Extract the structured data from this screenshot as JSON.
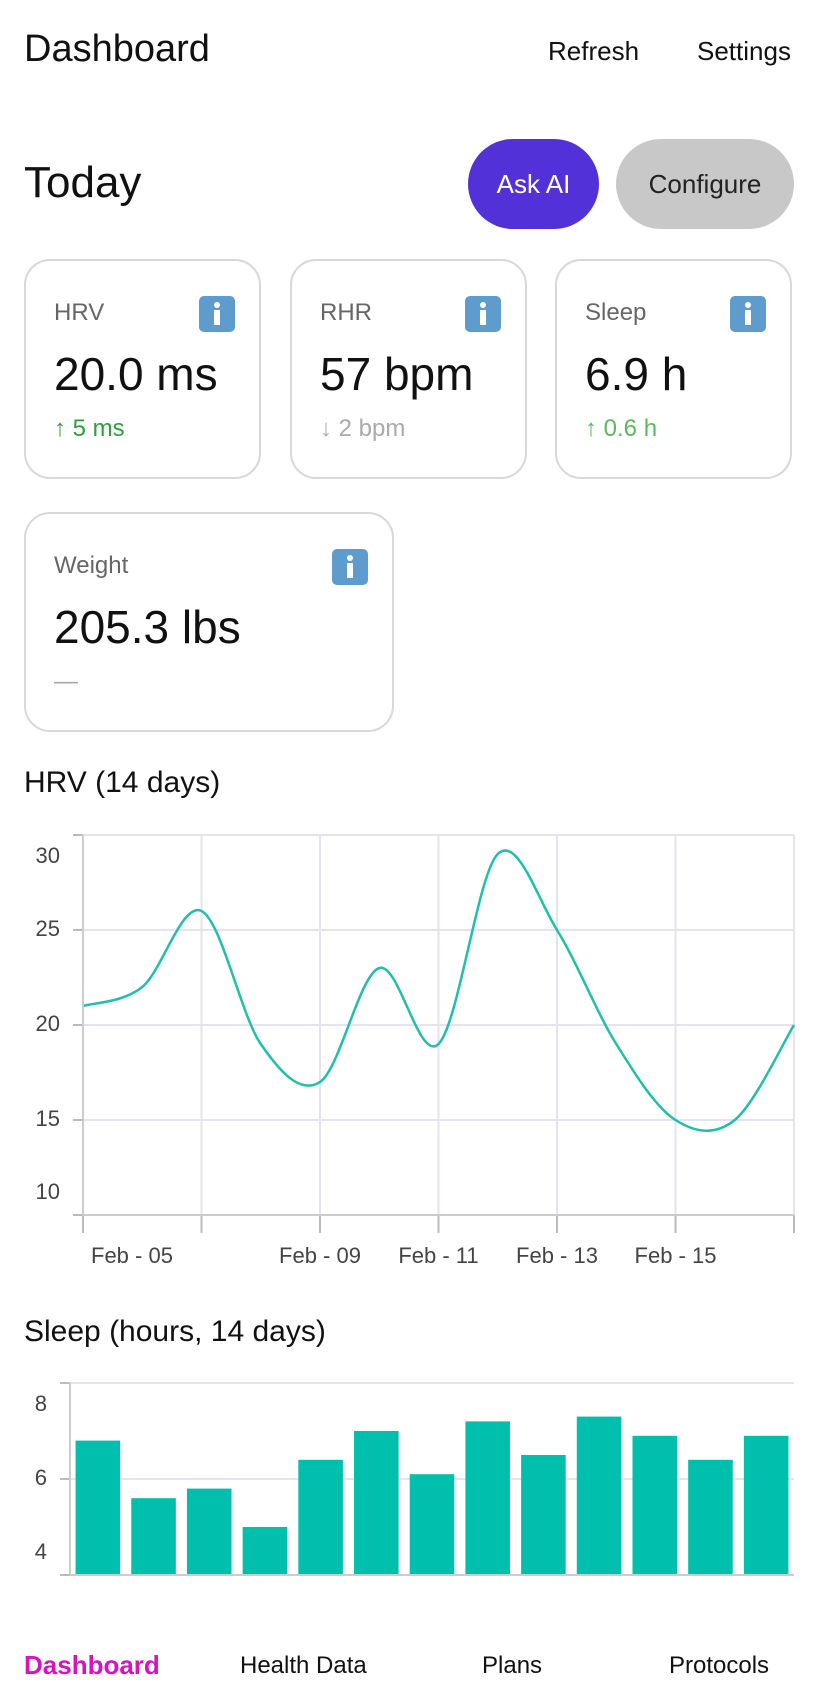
{
  "header": {
    "title": "Dashboard",
    "actions": [
      "Refresh",
      "Settings"
    ]
  },
  "today": {
    "title": "Today",
    "buttons": [
      "Ask AI",
      "Configure"
    ]
  },
  "cards": [
    {
      "label": "HRV",
      "value": "20.0 ms",
      "delta": "↑ 5 ms",
      "color": "#2f9e3f"
    },
    {
      "label": "RHR",
      "value": "57 bpm",
      "delta": "↓ 2 bpm",
      "color": "#aaaaaa"
    },
    {
      "label": "Sleep",
      "value": "6.9 h",
      "delta": "↑ 0.6 h",
      "color": "#5cb85c"
    },
    {
      "label": "Weight",
      "value": "205.3 lbs",
      "delta": "—",
      "color": "#aaaaaa"
    }
  ],
  "chart_data": [
    {
      "type": "line",
      "title": "HRV (14 days)",
      "categories": [
        "Feb - 05",
        null,
        null,
        null,
        "Feb - 09",
        null,
        "Feb - 11",
        null,
        "Feb - 13",
        null,
        "Feb - 15",
        null,
        null
      ],
      "values": [
        21,
        22,
        26,
        19,
        17,
        23,
        19,
        29,
        25,
        19,
        15,
        15,
        20
      ],
      "color": "#1fbfaa",
      "ylim": [
        10,
        30
      ],
      "yticks": [
        10,
        15,
        20,
        25,
        30
      ],
      "grid": true
    },
    {
      "type": "bar",
      "title": "Sleep (hours, 14 days)",
      "values": [
        6.8,
        5.6,
        5.8,
        5.0,
        6.4,
        7.0,
        6.1,
        7.2,
        6.5,
        7.3,
        6.9,
        6.4,
        6.9
      ],
      "color": "#00bfad",
      "ylim": [
        4,
        8
      ],
      "yticks": [
        4,
        6,
        8
      ],
      "grid": true
    }
  ],
  "tabs": [
    "Dashboard",
    "Health Data",
    "Plans",
    "Protocols"
  ]
}
